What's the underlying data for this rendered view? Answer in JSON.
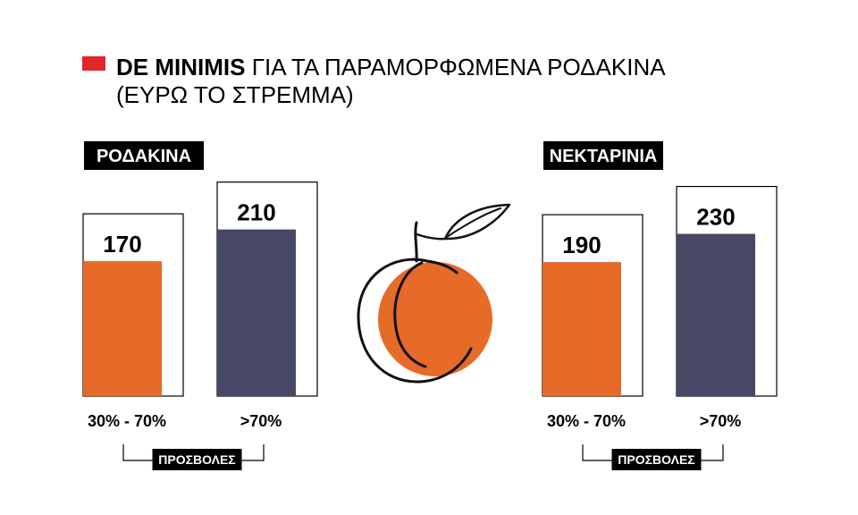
{
  "title": {
    "bold": "DE MINIMIS",
    "rest": "ΓΙΑ ΤΑ ΠΑΡΑΜΟΡΦΩΜΕΝΑ ΡΟΔΑΚΙΝΑ",
    "subtitle": "(ΕΥΡΩ ΤΟ ΣΤΡΕΜΜΑ)",
    "marker_color": "#e1262b"
  },
  "illustration": {
    "icon": "peach-icon",
    "fill_color": "#e66a28",
    "line_color": "#111111"
  },
  "chart_data": [
    {
      "type": "bar",
      "title": "ΡΟΔΑΚΙΝΑ",
      "categories": [
        "30% - 70%",
        ">70%"
      ],
      "values": [
        170,
        210
      ],
      "colors": [
        "#e66a28",
        "#474865"
      ],
      "xlabel": "ΠΡΟΣΒΟΛΕΣ",
      "ylim": [
        0,
        240
      ],
      "grid": false
    },
    {
      "type": "bar",
      "title": "ΝΕΚΤΑΡΙΝΙΑ",
      "categories": [
        "30% - 70%",
        ">70%"
      ],
      "values": [
        190,
        230
      ],
      "colors": [
        "#e66a28",
        "#474865"
      ],
      "xlabel": "ΠΡΟΣΒΟΛΕΣ",
      "ylim": [
        0,
        270
      ],
      "grid": false
    }
  ]
}
